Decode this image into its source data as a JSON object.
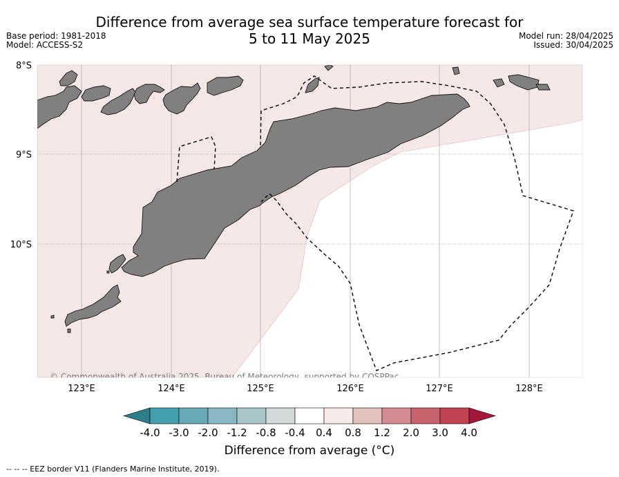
{
  "header": {
    "title_line1": "Difference from average sea surface temperature forecast for",
    "title_line2": "5 to 11 May 2025",
    "base_period": "Base period: 1981-2018",
    "model": "Model: ACCESS-S2",
    "model_run": "Model run: 28/04/2025",
    "issued": "Issued: 30/04/2025"
  },
  "map": {
    "lon_ticks": [
      "123°E",
      "124°E",
      "125°E",
      "126°E",
      "127°E",
      "128°E"
    ],
    "lat_ticks": [
      "8°S",
      "9°S",
      "10°S"
    ],
    "lon_range": [
      122.5,
      128.6
    ],
    "lat_range": [
      -8.0,
      -11.5
    ],
    "copyright": "© Commonwealth of Australia 2025, Bureau of Meteorology, supported by COSPPac",
    "colors": {
      "land": "#808080",
      "anomaly_fill": "#f5e8e6",
      "ocean_neutral": "#ffffff",
      "eez_border": "#000000"
    }
  },
  "colorbar": {
    "tick_labels": [
      "-4.0",
      "-3.0",
      "-2.0",
      "-1.2",
      "-0.8",
      "-0.4",
      "0.4",
      "0.8",
      "1.2",
      "2.0",
      "3.0",
      "4.0"
    ],
    "colors": [
      "#2e7e8a",
      "#459fae",
      "#67a9b7",
      "#89b8c2",
      "#a9c7ca",
      "#d2d9d8",
      "#ffffff",
      "#f6e9e7",
      "#e5c1bb",
      "#d48b92",
      "#c8636e",
      "#c14352",
      "#a5163b"
    ],
    "label": "Difference from average (°C)"
  },
  "footnote": "--  --  -- EEZ border V11 (Flanders Marine Institute, 2019)."
}
